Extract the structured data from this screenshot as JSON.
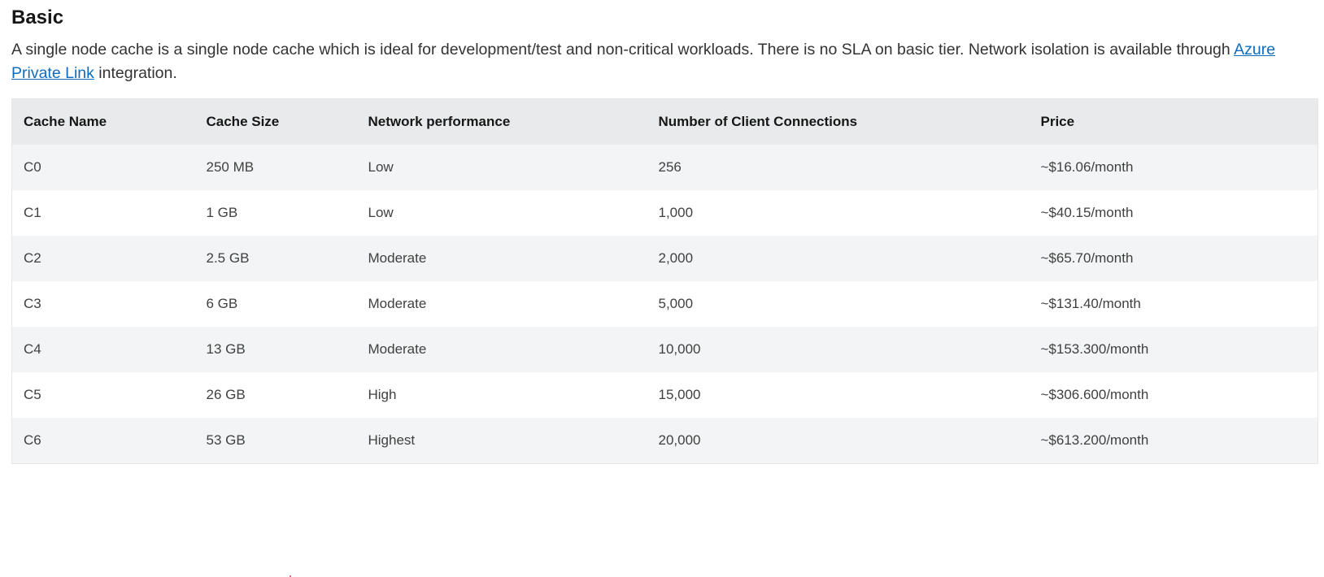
{
  "section": {
    "title": "Basic",
    "description_before_link": "A single node cache is a single node cache which is ideal for development/test and non-critical workloads. There is no SLA on basic tier. Network isolation is available through ",
    "link_text": "Azure Private Link",
    "description_after_link": " integration."
  },
  "table": {
    "headers": [
      "Cache Name",
      "Cache Size",
      "Network performance",
      "Number of Client Connections",
      "Price"
    ],
    "rows": [
      [
        "C0",
        "250 MB",
        "Low",
        "256",
        "~$16.06/month"
      ],
      [
        "C1",
        "1 GB",
        "Low",
        "1,000",
        "~$40.15/month"
      ],
      [
        "C2",
        "2.5 GB",
        "Moderate",
        "2,000",
        "~$65.70/month"
      ],
      [
        "C3",
        "6 GB",
        "Moderate",
        "5,000",
        "~$131.40/month"
      ],
      [
        "C4",
        "13 GB",
        "Moderate",
        "10,000",
        "~$153.300/month"
      ],
      [
        "C5",
        "26 GB",
        "High",
        "15,000",
        "~$306.600/month"
      ],
      [
        "C6",
        "53 GB",
        "Highest",
        "20,000",
        "~$613.200/month"
      ]
    ]
  },
  "colors": {
    "link": "#0f6cbd",
    "header_bg": "#e9eaeb",
    "row_alt_bg": "#f3f4f5"
  }
}
